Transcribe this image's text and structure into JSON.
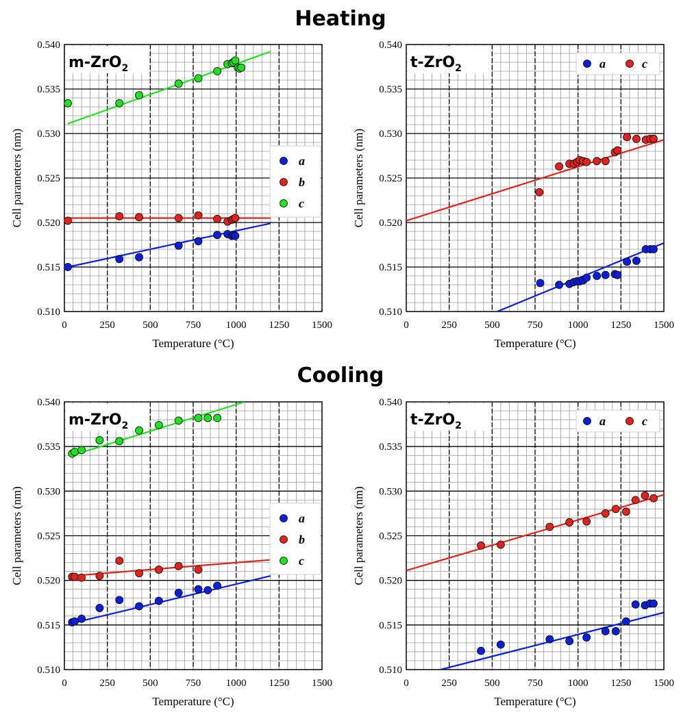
{
  "titles": {
    "heating": "Heating",
    "cooling": "Cooling"
  },
  "colors": {
    "a": "#0a1fd6",
    "b": "#e0231c",
    "c": "#21e021",
    "grid_major": "#000000",
    "grid_minor": "#9a9a9a"
  },
  "chart_data": [
    {
      "id": "heating-m",
      "type": "scatter",
      "phase_label": {
        "main": "m-ZrO",
        "sub": "2"
      },
      "xlabel": "Temperature (°C)",
      "ylabel": "Cell parameters (nm)",
      "xlim": [
        0,
        1500
      ],
      "ylim": [
        0.51,
        0.54
      ],
      "x_ticks": [
        "0",
        "250",
        "500",
        "750",
        "1000",
        "1250",
        "1500"
      ],
      "y_ticks": [
        "0.510",
        "0.515",
        "0.520",
        "0.525",
        "0.530",
        "0.535",
        "0.540"
      ],
      "grid": true,
      "legend_position": "center-right",
      "series": [
        {
          "name": "a",
          "color": "#0a1fd6",
          "x": [
            20,
            320,
            435,
            665,
            780,
            890,
            950,
            975,
            985,
            995
          ],
          "y": [
            0.515,
            0.5159,
            0.5161,
            0.5174,
            0.5179,
            0.5186,
            0.5187,
            0.5185,
            0.5186,
            0.5185
          ],
          "fit": [
            [
              20,
              0.515
            ],
            [
              1200,
              0.5199
            ]
          ]
        },
        {
          "name": "b",
          "color": "#e0231c",
          "x": [
            20,
            320,
            435,
            665,
            780,
            890,
            950,
            975,
            985,
            995
          ],
          "y": [
            0.5202,
            0.5207,
            0.5206,
            0.5205,
            0.5208,
            0.5204,
            0.5201,
            0.5203,
            0.5204,
            0.5205
          ],
          "fit": [
            [
              20,
              0.5205
            ],
            [
              1200,
              0.5205
            ]
          ]
        },
        {
          "name": "c",
          "color": "#21e021",
          "x": [
            20,
            320,
            435,
            665,
            780,
            890,
            950,
            975,
            985,
            995,
            1010,
            1020,
            1030
          ],
          "y": [
            0.5334,
            0.5334,
            0.5343,
            0.5356,
            0.5362,
            0.537,
            0.5378,
            0.5379,
            0.538,
            0.5382,
            0.5374,
            0.5373,
            0.5374
          ],
          "fit": [
            [
              20,
              0.5311
            ],
            [
              1200,
              0.5392
            ]
          ]
        }
      ]
    },
    {
      "id": "heating-t",
      "type": "scatter",
      "phase_label": {
        "main": "t-ZrO",
        "sub": "2"
      },
      "xlabel": "Temperature (°C)",
      "ylabel": "Cell parameters (nm)",
      "xlim": [
        0,
        1500
      ],
      "ylim": [
        0.51,
        0.54
      ],
      "x_ticks": [
        "0",
        "250",
        "500",
        "750",
        "1000",
        "1250",
        "1500"
      ],
      "y_ticks": [
        "0.510",
        "0.515",
        "0.520",
        "0.525",
        "0.530",
        "0.535",
        "0.540"
      ],
      "grid": true,
      "legend_position": "top-right",
      "series": [
        {
          "name": "a",
          "color": "#0a1fd6",
          "x": [
            780,
            890,
            950,
            975,
            995,
            1010,
            1030,
            1050,
            1110,
            1160,
            1215,
            1230,
            1285,
            1340,
            1395,
            1420,
            1440
          ],
          "y": [
            0.5132,
            0.513,
            0.5131,
            0.5133,
            0.5134,
            0.5134,
            0.5135,
            0.5138,
            0.514,
            0.5141,
            0.5142,
            0.5141,
            0.5156,
            0.5157,
            0.517,
            0.517,
            0.517
          ],
          "fit": [
            [
              530,
              0.51
            ],
            [
              1500,
              0.5177
            ]
          ]
        },
        {
          "name": "c",
          "color": "#e0231c",
          "x": [
            775,
            890,
            950,
            975,
            995,
            1010,
            1030,
            1050,
            1110,
            1160,
            1215,
            1230,
            1285,
            1340,
            1395,
            1420,
            1440
          ],
          "y": [
            0.5234,
            0.5263,
            0.5266,
            0.5266,
            0.5268,
            0.527,
            0.5269,
            0.5268,
            0.5269,
            0.5269,
            0.5279,
            0.5281,
            0.5296,
            0.5294,
            0.5293,
            0.5294,
            0.5294
          ],
          "fit": [
            [
              0,
              0.5202
            ],
            [
              1500,
              0.5293
            ]
          ]
        }
      ]
    },
    {
      "id": "cooling-m",
      "type": "scatter",
      "phase_label": {
        "main": "m-ZrO",
        "sub": "2"
      },
      "xlabel": "Temperature (°C)",
      "ylabel": "Cell parameters (nm)",
      "xlim": [
        0,
        1500
      ],
      "ylim": [
        0.51,
        0.54
      ],
      "x_ticks": [
        "0",
        "250",
        "500",
        "750",
        "1000",
        "1250",
        "1500"
      ],
      "y_ticks": [
        "0.510",
        "0.515",
        "0.520",
        "0.525",
        "0.530",
        "0.535",
        "0.540"
      ],
      "grid": true,
      "legend_position": "center-right",
      "series": [
        {
          "name": "a",
          "color": "#0a1fd6",
          "x": [
            45,
            60,
            100,
            205,
            320,
            435,
            550,
            665,
            780,
            835,
            890
          ],
          "y": [
            0.5153,
            0.5154,
            0.5157,
            0.5169,
            0.5178,
            0.5171,
            0.5177,
            0.5186,
            0.519,
            0.5189,
            0.5194
          ],
          "fit": [
            [
              45,
              0.5152
            ],
            [
              1200,
              0.5205
            ]
          ]
        },
        {
          "name": "b",
          "color": "#e0231c",
          "x": [
            45,
            60,
            100,
            205,
            320,
            435,
            550,
            665,
            780
          ],
          "y": [
            0.5204,
            0.5204,
            0.5203,
            0.5205,
            0.5222,
            0.5208,
            0.5212,
            0.5216,
            0.5212
          ],
          "fit": [
            [
              45,
              0.5205
            ],
            [
              1200,
              0.5223
            ]
          ]
        },
        {
          "name": "c",
          "color": "#21e021",
          "x": [
            45,
            60,
            100,
            205,
            320,
            435,
            550,
            665,
            780,
            835,
            890
          ],
          "y": [
            0.5342,
            0.5344,
            0.5346,
            0.5357,
            0.5356,
            0.5368,
            0.5374,
            0.5379,
            0.5382,
            0.5382,
            0.5382
          ],
          "fit": [
            [
              45,
              0.534
            ],
            [
              1050,
              0.54
            ]
          ]
        }
      ]
    },
    {
      "id": "cooling-t",
      "type": "scatter",
      "phase_label": {
        "main": "t-ZrO",
        "sub": "2"
      },
      "xlabel": "Temperature (°C)",
      "ylabel": "Cell parameters (nm)",
      "xlim": [
        0,
        1500
      ],
      "ylim": [
        0.51,
        0.54
      ],
      "x_ticks": [
        "0",
        "250",
        "500",
        "750",
        "1000",
        "1250",
        "1500"
      ],
      "y_ticks": [
        "0.510",
        "0.515",
        "0.520",
        "0.525",
        "0.530",
        "0.535",
        "0.540"
      ],
      "grid": true,
      "legend_position": "top-right",
      "series": [
        {
          "name": "a",
          "color": "#0a1fd6",
          "x": [
            435,
            550,
            835,
            950,
            1050,
            1160,
            1220,
            1280,
            1335,
            1390,
            1420,
            1440
          ],
          "y": [
            0.5121,
            0.5128,
            0.5134,
            0.5132,
            0.5136,
            0.5143,
            0.5143,
            0.5154,
            0.5173,
            0.5172,
            0.5174,
            0.5174
          ],
          "fit": [
            [
              200,
              0.51
            ],
            [
              1500,
              0.5164
            ]
          ]
        },
        {
          "name": "c",
          "color": "#e0231c",
          "x": [
            435,
            550,
            835,
            950,
            1050,
            1160,
            1220,
            1280,
            1335,
            1390,
            1440
          ],
          "y": [
            0.5239,
            0.524,
            0.526,
            0.5265,
            0.5266,
            0.5275,
            0.528,
            0.5277,
            0.529,
            0.5295,
            0.5292
          ],
          "fit": [
            [
              0,
              0.5211
            ],
            [
              1500,
              0.5296
            ]
          ]
        }
      ]
    }
  ]
}
